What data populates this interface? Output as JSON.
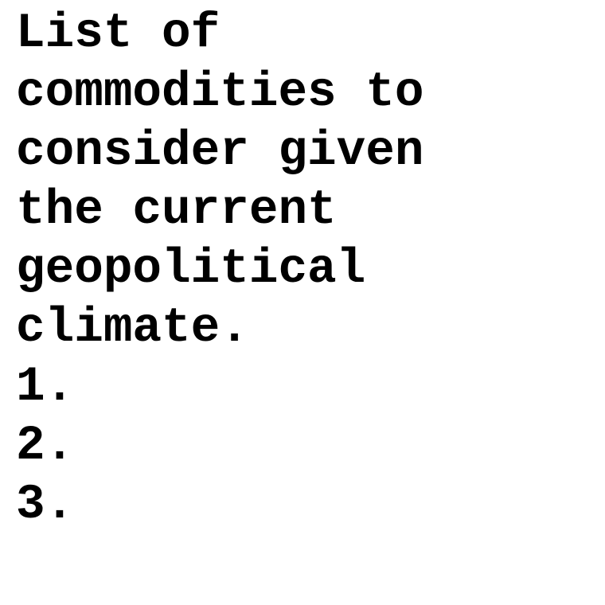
{
  "document": {
    "text_lines": [
      "List of",
      "commodities to",
      "consider given",
      "the current",
      "geopolitical",
      "climate.",
      "1.",
      "2.",
      "3."
    ]
  }
}
